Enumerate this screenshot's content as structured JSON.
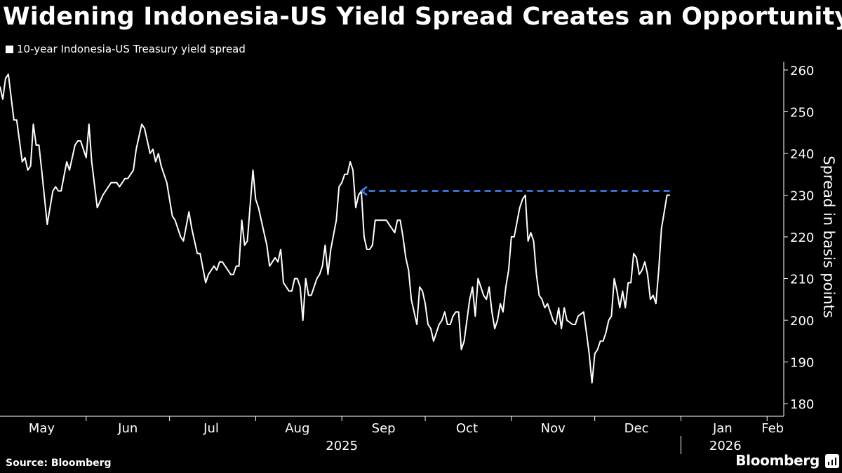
{
  "header": {
    "title": "Widening Indonesia-US Yield Spread Creates an Opportunity",
    "legend_label": "10-year Indonesia-US Treasury yield spread"
  },
  "footer": {
    "source": "Source: Bloomberg",
    "brand": "Bloomberg"
  },
  "colors": {
    "background": "#000000",
    "line": "#ffffff",
    "annotation": "#3d8bff"
  },
  "chart_data": {
    "type": "line",
    "title": "Widening Indonesia-US Yield Spread Creates an Opportunity",
    "ylabel": "Spread in basis points",
    "xlabel": "",
    "ylim": [
      177,
      262
    ],
    "yticks": [
      180,
      190,
      200,
      210,
      220,
      230,
      240,
      250,
      260
    ],
    "x_range_days": [
      0,
      282
    ],
    "month_ticks": [
      {
        "label": "May",
        "day": 15
      },
      {
        "label": "Jun",
        "day": 46
      },
      {
        "label": "Jul",
        "day": 76
      },
      {
        "label": "Aug",
        "day": 107
      },
      {
        "label": "Sep",
        "day": 138
      },
      {
        "label": "Oct",
        "day": 168
      },
      {
        "label": "Nov",
        "day": 199
      },
      {
        "label": "Dec",
        "day": 229
      },
      {
        "label": "Jan",
        "day": 260
      },
      {
        "label": "Feb",
        "day": 278
      }
    ],
    "month_boundaries": [
      31,
      61,
      92,
      123,
      153,
      184,
      214,
      245,
      276
    ],
    "year_labels": [
      {
        "label": "2025",
        "day": 123
      },
      {
        "label": "2026",
        "day": 261
      }
    ],
    "year_boundary_day": 245,
    "series": [
      {
        "name": "10-year Indonesia-US Treasury yield spread",
        "points": [
          [
            0,
            256
          ],
          [
            1,
            253
          ],
          [
            2,
            258
          ],
          [
            3,
            259
          ],
          [
            5,
            248
          ],
          [
            6,
            248
          ],
          [
            8,
            238
          ],
          [
            9,
            239
          ],
          [
            10,
            236
          ],
          [
            11,
            237
          ],
          [
            12,
            247
          ],
          [
            13,
            242
          ],
          [
            14,
            242
          ],
          [
            15,
            236
          ],
          [
            17,
            223
          ],
          [
            19,
            231
          ],
          [
            20,
            232
          ],
          [
            21,
            231
          ],
          [
            22,
            231
          ],
          [
            24,
            238
          ],
          [
            25,
            236
          ],
          [
            27,
            242
          ],
          [
            28,
            243
          ],
          [
            29,
            243
          ],
          [
            31,
            239
          ],
          [
            32,
            247
          ],
          [
            33,
            238
          ],
          [
            35,
            227
          ],
          [
            37,
            230
          ],
          [
            38,
            231
          ],
          [
            40,
            233
          ],
          [
            42,
            233
          ],
          [
            43,
            232
          ],
          [
            45,
            234
          ],
          [
            46,
            234
          ],
          [
            48,
            236
          ],
          [
            49,
            241
          ],
          [
            51,
            247
          ],
          [
            52,
            246
          ],
          [
            54,
            240
          ],
          [
            55,
            241
          ],
          [
            56,
            238
          ],
          [
            57,
            240
          ],
          [
            58,
            237
          ],
          [
            60,
            233
          ],
          [
            62,
            225
          ],
          [
            63,
            224
          ],
          [
            65,
            220
          ],
          [
            66,
            219
          ],
          [
            68,
            226
          ],
          [
            69,
            222
          ],
          [
            71,
            216
          ],
          [
            72,
            216
          ],
          [
            74,
            209
          ],
          [
            75,
            211
          ],
          [
            77,
            213
          ],
          [
            78,
            212
          ],
          [
            79,
            214
          ],
          [
            80,
            214
          ],
          [
            82,
            212
          ],
          [
            83,
            211
          ],
          [
            84,
            211
          ],
          [
            85,
            213
          ],
          [
            86,
            213
          ],
          [
            87,
            224
          ],
          [
            88,
            218
          ],
          [
            89,
            219
          ],
          [
            91,
            236
          ],
          [
            92,
            229
          ],
          [
            93,
            227
          ],
          [
            95,
            221
          ],
          [
            96,
            218
          ],
          [
            97,
            213
          ],
          [
            99,
            215
          ],
          [
            100,
            214
          ],
          [
            101,
            217
          ],
          [
            102,
            209
          ],
          [
            104,
            207
          ],
          [
            105,
            207
          ],
          [
            106,
            210
          ],
          [
            107,
            210
          ],
          [
            108,
            208
          ],
          [
            109,
            200
          ],
          [
            110,
            210
          ],
          [
            111,
            206
          ],
          [
            112,
            206
          ],
          [
            113,
            208
          ],
          [
            114,
            210
          ],
          [
            115,
            211
          ],
          [
            116,
            213
          ],
          [
            117,
            218
          ],
          [
            118,
            211
          ],
          [
            119,
            217
          ],
          [
            121,
            224
          ],
          [
            122,
            232
          ],
          [
            123,
            233
          ],
          [
            124,
            235
          ],
          [
            125,
            235
          ],
          [
            126,
            238
          ],
          [
            127,
            236
          ],
          [
            128,
            227
          ],
          [
            129,
            230
          ],
          [
            130,
            231
          ],
          [
            131,
            220
          ],
          [
            132,
            217
          ],
          [
            133,
            217
          ],
          [
            134,
            218
          ],
          [
            135,
            224
          ],
          [
            136,
            224
          ],
          [
            137,
            224
          ],
          [
            138,
            224
          ],
          [
            139,
            224
          ],
          [
            140,
            223
          ],
          [
            141,
            222
          ],
          [
            142,
            221
          ],
          [
            143,
            224
          ],
          [
            144,
            224
          ],
          [
            145,
            220
          ],
          [
            146,
            215
          ],
          [
            147,
            212
          ],
          [
            148,
            205
          ],
          [
            150,
            199
          ],
          [
            151,
            208
          ],
          [
            152,
            207
          ],
          [
            153,
            204
          ],
          [
            154,
            199
          ],
          [
            155,
            198
          ],
          [
            156,
            195
          ],
          [
            158,
            199
          ],
          [
            159,
            200
          ],
          [
            160,
            202
          ],
          [
            161,
            199
          ],
          [
            162,
            199
          ],
          [
            163,
            201
          ],
          [
            164,
            202
          ],
          [
            165,
            202
          ],
          [
            166,
            193
          ],
          [
            167,
            195
          ],
          [
            169,
            205
          ],
          [
            170,
            208
          ],
          [
            171,
            201
          ],
          [
            172,
            210
          ],
          [
            173,
            208
          ],
          [
            174,
            206
          ],
          [
            175,
            205
          ],
          [
            176,
            208
          ],
          [
            177,
            202
          ],
          [
            178,
            198
          ],
          [
            179,
            200
          ],
          [
            180,
            204
          ],
          [
            181,
            202
          ],
          [
            182,
            208
          ],
          [
            183,
            212
          ],
          [
            184,
            220
          ],
          [
            185,
            220
          ],
          [
            187,
            227
          ],
          [
            188,
            229
          ],
          [
            189,
            230
          ],
          [
            190,
            219
          ],
          [
            191,
            221
          ],
          [
            192,
            219
          ],
          [
            193,
            211
          ],
          [
            194,
            206
          ],
          [
            195,
            205
          ],
          [
            196,
            203
          ],
          [
            197,
            204
          ],
          [
            198,
            202
          ],
          [
            199,
            200
          ],
          [
            200,
            199
          ],
          [
            201,
            203
          ],
          [
            202,
            198
          ],
          [
            203,
            203
          ],
          [
            204,
            200
          ],
          [
            206,
            199
          ],
          [
            207,
            199
          ],
          [
            208,
            201
          ],
          [
            210,
            202
          ],
          [
            211,
            197
          ],
          [
            212,
            192
          ],
          [
            213,
            185
          ],
          [
            214,
            192
          ],
          [
            215,
            193
          ],
          [
            216,
            195
          ],
          [
            217,
            195
          ],
          [
            218,
            197
          ],
          [
            219,
            200
          ],
          [
            220,
            201
          ],
          [
            221,
            210
          ],
          [
            222,
            207
          ],
          [
            223,
            203
          ],
          [
            224,
            207
          ],
          [
            225,
            203
          ],
          [
            226,
            209
          ],
          [
            227,
            209
          ],
          [
            228,
            216
          ],
          [
            229,
            215
          ],
          [
            230,
            211
          ],
          [
            231,
            212
          ],
          [
            232,
            214
          ],
          [
            233,
            211
          ],
          [
            234,
            205
          ],
          [
            235,
            206
          ],
          [
            236,
            204
          ],
          [
            237,
            212
          ],
          [
            238,
            222
          ],
          [
            239,
            226
          ],
          [
            240,
            230
          ],
          [
            241,
            230
          ]
        ]
      }
    ],
    "annotation": {
      "type": "dashed-arrow",
      "value": 231,
      "from_day": 241,
      "to_day": 130,
      "color": "#3d8bff"
    }
  }
}
